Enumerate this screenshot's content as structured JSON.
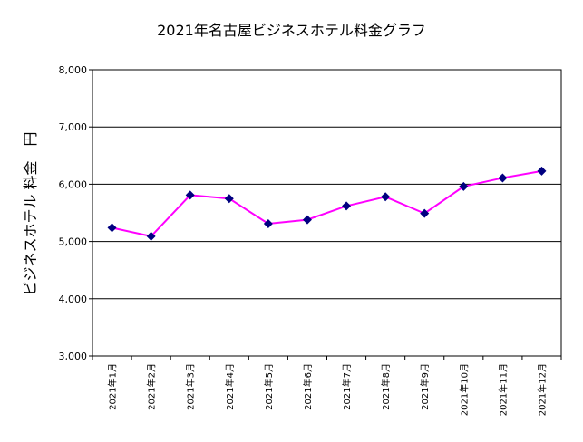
{
  "chart_data": {
    "type": "line",
    "title": "2021年名古屋ビジネスホテル料金グラフ",
    "xlabel": "",
    "ylabel": "ビジネスホテル 料金　円",
    "categories": [
      "2021年1月",
      "2021年2月",
      "2021年3月",
      "2021年4月",
      "2021年5月",
      "2021年6月",
      "2021年7月",
      "2021年8月",
      "2021年9月",
      "2021年10月",
      "2021年11月",
      "2021年12月"
    ],
    "series": [
      {
        "name": "",
        "values": [
          5240,
          5090,
          5810,
          5750,
          5310,
          5380,
          5620,
          5780,
          5490,
          5960,
          6110,
          6230
        ]
      }
    ],
    "ylim": [
      3000,
      8000
    ],
    "yticks": [
      3000,
      4000,
      5000,
      6000,
      7000,
      8000
    ],
    "ytick_labels": [
      "3,000",
      "4,000",
      "5,000",
      "6,000",
      "7,000",
      "8,000"
    ],
    "grid": true,
    "line_color": "#ff00ff",
    "marker_color": "#000080"
  }
}
